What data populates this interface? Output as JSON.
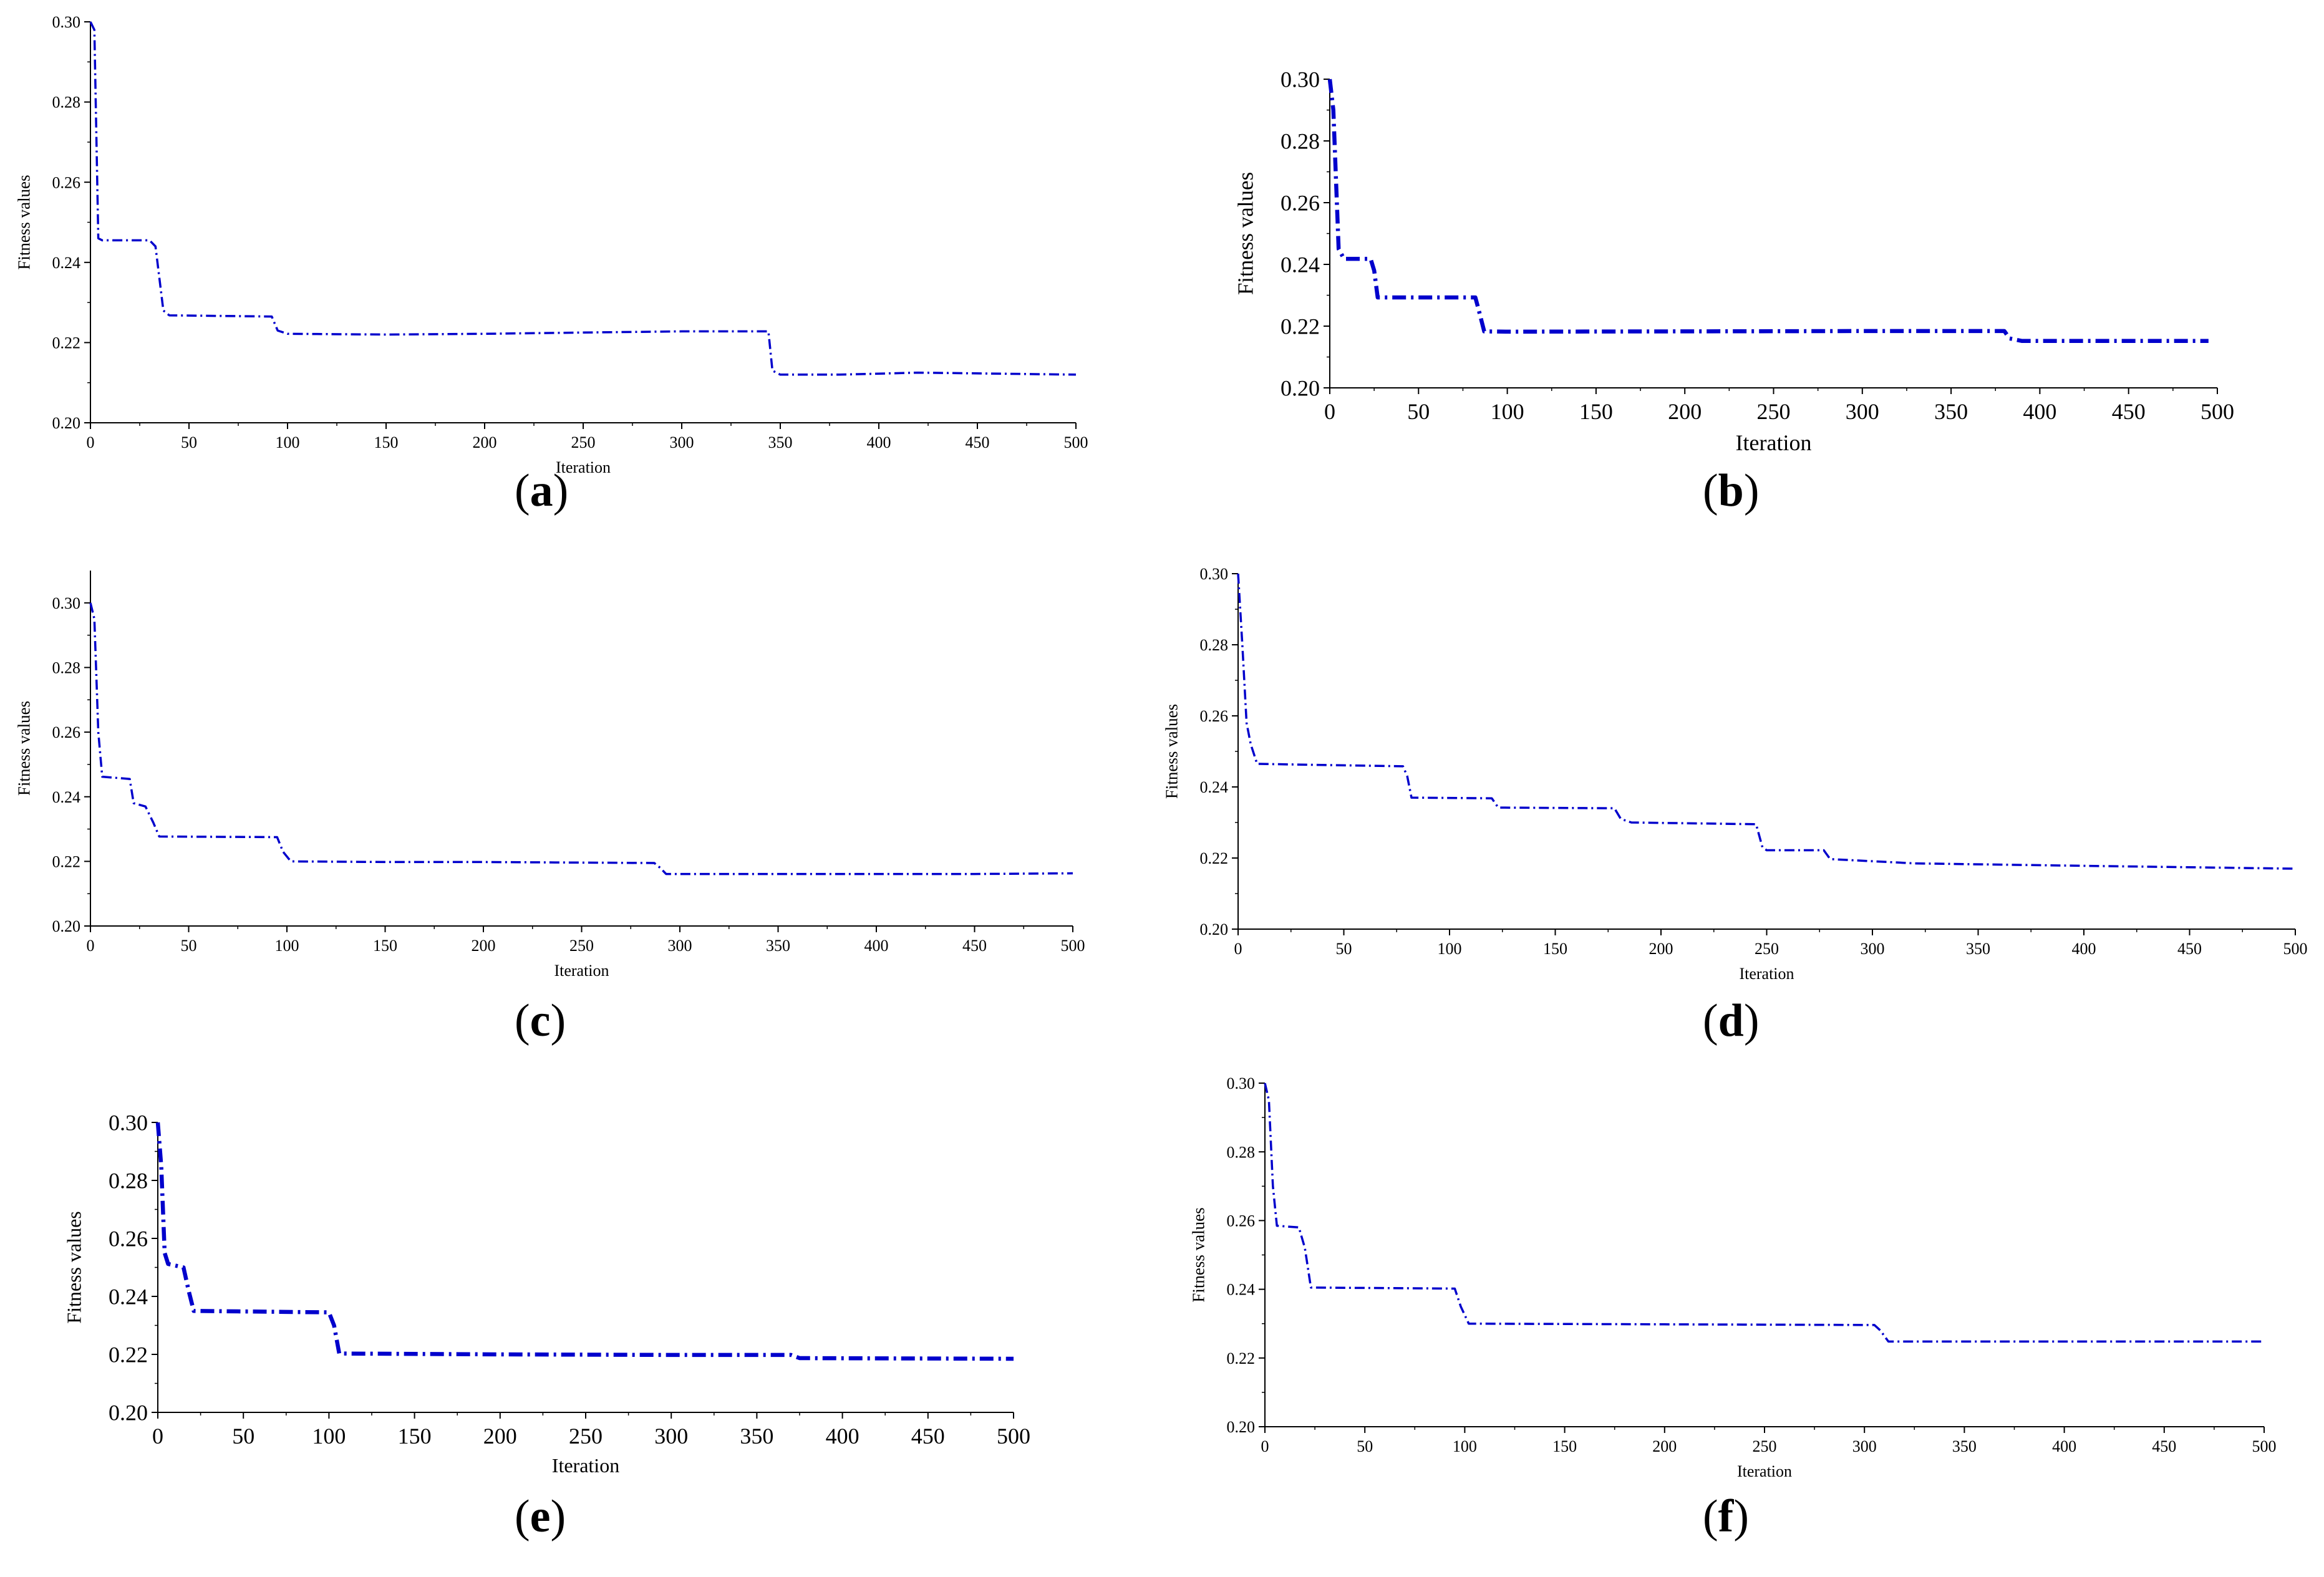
{
  "colors": {
    "series": "#0000cc",
    "axis": "#000000",
    "background": "#ffffff"
  },
  "chart_data": [
    {
      "id": "a",
      "label": "a",
      "type": "line",
      "xlabel": "Iteration",
      "ylabel": "Fitness values",
      "xlim": [
        0,
        500
      ],
      "ylim": [
        0.2,
        0.3
      ],
      "xticks": [
        0,
        50,
        100,
        150,
        200,
        250,
        300,
        350,
        400,
        450,
        500
      ],
      "xtick_labels": [
        "0",
        "50",
        "100",
        "150",
        "200",
        "250",
        "300",
        "350",
        "400",
        "450",
        "500"
      ],
      "yticks": [
        0.2,
        0.22,
        0.24,
        0.26,
        0.28,
        0.3
      ],
      "ytick_labels": [
        "0.20",
        "0.22",
        "0.24",
        "0.26",
        "0.28",
        "0.30"
      ],
      "grid": false,
      "series": [
        {
          "name": "fitness",
          "x": [
            0,
            2,
            4,
            6,
            30,
            33,
            37,
            40,
            92,
            95,
            100,
            150,
            200,
            250,
            300,
            344,
            346,
            350,
            380,
            420,
            500
          ],
          "y": [
            0.3,
            0.298,
            0.246,
            0.2455,
            0.2455,
            0.244,
            0.228,
            0.2268,
            0.2265,
            0.223,
            0.2222,
            0.222,
            0.2222,
            0.2225,
            0.2228,
            0.2228,
            0.213,
            0.212,
            0.212,
            0.2125,
            0.212
          ]
        }
      ]
    },
    {
      "id": "b",
      "label": "b",
      "type": "line",
      "xlabel": "Iteration",
      "ylabel": "Fitness values",
      "xlim": [
        0,
        500
      ],
      "ylim": [
        0.2,
        0.3
      ],
      "xticks": [
        0,
        50,
        100,
        150,
        200,
        250,
        300,
        350,
        400,
        450,
        500
      ],
      "xtick_labels": [
        "0",
        "50",
        "100",
        "150",
        "200",
        "250",
        "300",
        "350",
        "400",
        "450",
        "500"
      ],
      "yticks": [
        0.2,
        0.22,
        0.24,
        0.26,
        0.28,
        0.3
      ],
      "ytick_labels": [
        "0.20",
        "0.22",
        "0.24",
        "0.26",
        "0.28",
        "0.30"
      ],
      "grid": false,
      "series": [
        {
          "name": "fitness",
          "x": [
            0,
            2,
            5,
            8,
            23,
            25,
            27,
            82,
            84,
            87,
            100,
            200,
            300,
            380,
            383,
            390,
            495
          ],
          "y": [
            0.3,
            0.29,
            0.245,
            0.2418,
            0.2418,
            0.238,
            0.2293,
            0.2293,
            0.225,
            0.2183,
            0.2182,
            0.2183,
            0.2184,
            0.2184,
            0.216,
            0.2152,
            0.2152
          ]
        }
      ]
    },
    {
      "id": "c",
      "label": "c",
      "type": "line",
      "xlabel": "Iteration",
      "ylabel": "Fitness values",
      "xlim": [
        0,
        500
      ],
      "ylim": [
        0.2,
        0.31
      ],
      "xticks": [
        0,
        50,
        100,
        150,
        200,
        250,
        300,
        350,
        400,
        450,
        500
      ],
      "xtick_labels": [
        "0",
        "50",
        "100",
        "150",
        "200",
        "250",
        "300",
        "350",
        "400",
        "450",
        "500"
      ],
      "yticks": [
        0.2,
        0.22,
        0.24,
        0.26,
        0.28,
        0.3
      ],
      "ytick_labels": [
        "0.20",
        "0.22",
        "0.24",
        "0.26",
        "0.28",
        "0.30"
      ],
      "grid": false,
      "series": [
        {
          "name": "fitness",
          "x": [
            0,
            2,
            4,
            6,
            20,
            22,
            28,
            32,
            35,
            95,
            98,
            102,
            150,
            200,
            287,
            290,
            293,
            350,
            450,
            500
          ],
          "y": [
            0.3,
            0.295,
            0.26,
            0.2462,
            0.2455,
            0.238,
            0.237,
            0.232,
            0.2277,
            0.2275,
            0.223,
            0.22,
            0.2198,
            0.2198,
            0.2195,
            0.218,
            0.2161,
            0.2161,
            0.2161,
            0.2163
          ]
        }
      ]
    },
    {
      "id": "d",
      "label": "d",
      "type": "line",
      "xlabel": "Iteration",
      "ylabel": "Fitness values",
      "xlim": [
        0,
        500
      ],
      "ylim": [
        0.2,
        0.3
      ],
      "xticks": [
        0,
        50,
        100,
        150,
        200,
        250,
        300,
        350,
        400,
        450,
        500
      ],
      "xtick_labels": [
        "0",
        "50",
        "100",
        "150",
        "200",
        "250",
        "300",
        "350",
        "400",
        "450",
        "500"
      ],
      "yticks": [
        0.2,
        0.22,
        0.24,
        0.26,
        0.28,
        0.3
      ],
      "ytick_labels": [
        "0.20",
        "0.22",
        "0.24",
        "0.26",
        "0.28",
        "0.30"
      ],
      "grid": false,
      "series": [
        {
          "name": "fitness",
          "x": [
            0,
            2,
            4,
            6,
            9,
            78,
            80,
            82,
            120,
            123,
            178,
            181,
            186,
            245,
            248,
            250,
            277,
            280,
            320,
            400,
            500
          ],
          "y": [
            0.3,
            0.28,
            0.258,
            0.252,
            0.2465,
            0.2458,
            0.243,
            0.237,
            0.2368,
            0.2342,
            0.234,
            0.231,
            0.23,
            0.2295,
            0.223,
            0.2222,
            0.2222,
            0.2197,
            0.2185,
            0.2178,
            0.217
          ]
        }
      ]
    },
    {
      "id": "e",
      "label": "e",
      "type": "line",
      "xlabel": "Iteration",
      "ylabel": "Fitness values",
      "xlim": [
        0,
        500
      ],
      "ylim": [
        0.2,
        0.3
      ],
      "xticks": [
        0,
        50,
        100,
        150,
        200,
        250,
        300,
        350,
        400,
        450,
        500
      ],
      "xtick_labels": [
        "0",
        "50",
        "100",
        "150",
        "200",
        "250",
        "300",
        "350",
        "400",
        "450",
        "500"
      ],
      "yticks": [
        0.2,
        0.22,
        0.24,
        0.26,
        0.28,
        0.3
      ],
      "ytick_labels": [
        "0.20",
        "0.22",
        "0.24",
        "0.26",
        "0.28",
        "0.30"
      ],
      "grid": false,
      "series": [
        {
          "name": "fitness",
          "x": [
            0,
            2,
            4,
            6,
            15,
            18,
            21,
            100,
            103,
            106,
            200,
            300,
            370,
            375,
            500
          ],
          "y": [
            0.3,
            0.285,
            0.255,
            0.2512,
            0.25,
            0.242,
            0.235,
            0.2345,
            0.23,
            0.2203,
            0.22,
            0.2198,
            0.2198,
            0.2187,
            0.2185
          ]
        }
      ]
    },
    {
      "id": "f",
      "label": "f",
      "type": "line",
      "xlabel": "Iteration",
      "ylabel": "Fitness values",
      "xlim": [
        0,
        500
      ],
      "ylim": [
        0.2,
        0.3
      ],
      "xticks": [
        0,
        50,
        100,
        150,
        200,
        250,
        300,
        350,
        400,
        450,
        500
      ],
      "xtick_labels": [
        "0",
        "50",
        "100",
        "150",
        "200",
        "250",
        "300",
        "350",
        "400",
        "450",
        "500"
      ],
      "yticks": [
        0.2,
        0.22,
        0.24,
        0.26,
        0.28,
        0.3
      ],
      "ytick_labels": [
        "0.20",
        "0.22",
        "0.24",
        "0.26",
        "0.28",
        "0.30"
      ],
      "grid": false,
      "series": [
        {
          "name": "fitness",
          "x": [
            0,
            2,
            4,
            6,
            17,
            20,
            23,
            95,
            98,
            102,
            200,
            305,
            308,
            312,
            500
          ],
          "y": [
            0.3,
            0.295,
            0.27,
            0.2585,
            0.258,
            0.252,
            0.2405,
            0.2402,
            0.235,
            0.23,
            0.2298,
            0.2296,
            0.228,
            0.2248,
            0.2248
          ]
        }
      ]
    }
  ]
}
